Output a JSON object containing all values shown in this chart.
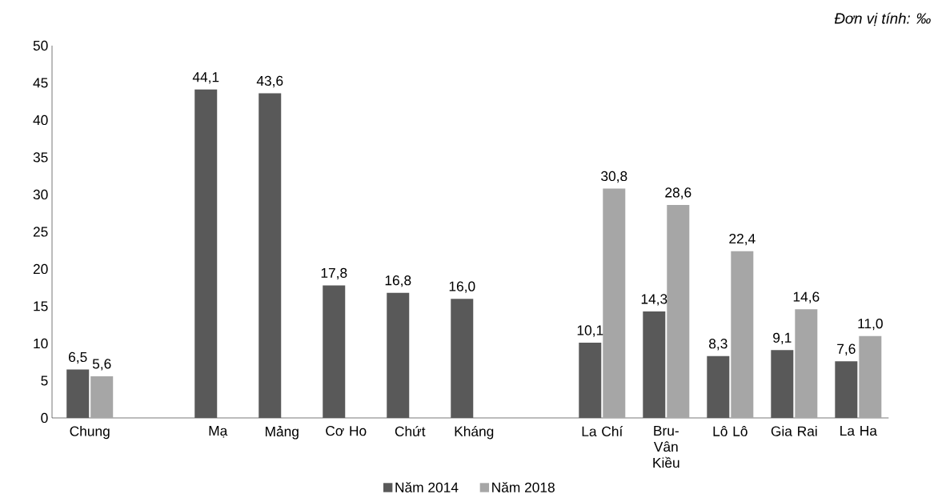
{
  "chart_data": {
    "type": "bar",
    "categories": [
      "Chung",
      null,
      "Mạ",
      "Mảng",
      "Cơ Ho",
      "Chứt",
      "Kháng",
      null,
      "La Chí",
      "Bru-Vân Kiều",
      "Lô Lô",
      "Gia Rai",
      "La Ha"
    ],
    "series": [
      {
        "name": "Năm 2014",
        "color": "#595959",
        "values": [
          6.5,
          null,
          44.1,
          43.6,
          17.8,
          16.8,
          16.0,
          null,
          10.1,
          14.3,
          8.3,
          9.1,
          7.6
        ],
        "value_labels": [
          "6,5",
          null,
          "44,1",
          "43,6",
          "17,8",
          "16,8",
          "16,0",
          null,
          "10,1",
          "14,3",
          "8,3",
          "9,1",
          "7,6"
        ]
      },
      {
        "name": "Năm 2018",
        "color": "#a6a6a6",
        "values": [
          5.6,
          null,
          null,
          null,
          null,
          null,
          null,
          null,
          30.8,
          28.6,
          22.4,
          14.6,
          11.0
        ],
        "value_labels": [
          "5,6",
          null,
          null,
          null,
          null,
          null,
          null,
          null,
          "30,8",
          "28,6",
          "22,4",
          "14,6",
          "11,0"
        ]
      }
    ],
    "ylim": [
      0,
      50
    ],
    "yticks": [
      0,
      5,
      10,
      15,
      20,
      25,
      30,
      35,
      40,
      45,
      50
    ],
    "grid": false,
    "legend": "bottom",
    "annotations": [
      "Đơn vị tính: ‰"
    ]
  }
}
